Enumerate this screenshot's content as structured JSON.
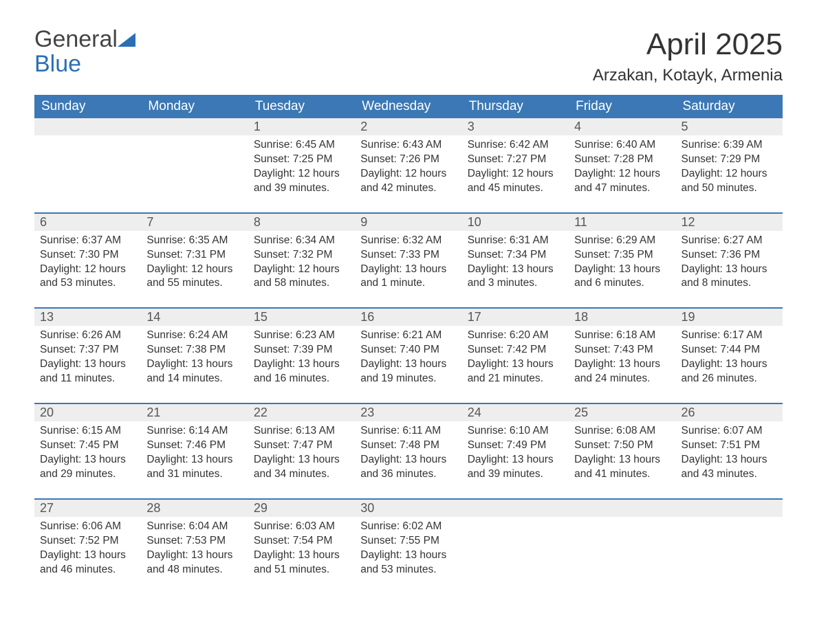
{
  "logo": {
    "word1": "General",
    "word2": "Blue"
  },
  "header": {
    "month_title": "April 2025",
    "location": "Arzakan, Kotayk, Armenia"
  },
  "colors": {
    "brand_blue": "#3b78b5",
    "header_row_bg": "#eeeeee",
    "text": "#333333",
    "page_bg": "#ffffff"
  },
  "calendar": {
    "columns": [
      "Sunday",
      "Monday",
      "Tuesday",
      "Wednesday",
      "Thursday",
      "Friday",
      "Saturday"
    ],
    "weeks": [
      [
        null,
        null,
        {
          "n": "1",
          "sr": "6:45 AM",
          "ss": "7:25 PM",
          "dl": "12 hours and 39 minutes."
        },
        {
          "n": "2",
          "sr": "6:43 AM",
          "ss": "7:26 PM",
          "dl": "12 hours and 42 minutes."
        },
        {
          "n": "3",
          "sr": "6:42 AM",
          "ss": "7:27 PM",
          "dl": "12 hours and 45 minutes."
        },
        {
          "n": "4",
          "sr": "6:40 AM",
          "ss": "7:28 PM",
          "dl": "12 hours and 47 minutes."
        },
        {
          "n": "5",
          "sr": "6:39 AM",
          "ss": "7:29 PM",
          "dl": "12 hours and 50 minutes."
        }
      ],
      [
        {
          "n": "6",
          "sr": "6:37 AM",
          "ss": "7:30 PM",
          "dl": "12 hours and 53 minutes."
        },
        {
          "n": "7",
          "sr": "6:35 AM",
          "ss": "7:31 PM",
          "dl": "12 hours and 55 minutes."
        },
        {
          "n": "8",
          "sr": "6:34 AM",
          "ss": "7:32 PM",
          "dl": "12 hours and 58 minutes."
        },
        {
          "n": "9",
          "sr": "6:32 AM",
          "ss": "7:33 PM",
          "dl": "13 hours and 1 minute."
        },
        {
          "n": "10",
          "sr": "6:31 AM",
          "ss": "7:34 PM",
          "dl": "13 hours and 3 minutes."
        },
        {
          "n": "11",
          "sr": "6:29 AM",
          "ss": "7:35 PM",
          "dl": "13 hours and 6 minutes."
        },
        {
          "n": "12",
          "sr": "6:27 AM",
          "ss": "7:36 PM",
          "dl": "13 hours and 8 minutes."
        }
      ],
      [
        {
          "n": "13",
          "sr": "6:26 AM",
          "ss": "7:37 PM",
          "dl": "13 hours and 11 minutes."
        },
        {
          "n": "14",
          "sr": "6:24 AM",
          "ss": "7:38 PM",
          "dl": "13 hours and 14 minutes."
        },
        {
          "n": "15",
          "sr": "6:23 AM",
          "ss": "7:39 PM",
          "dl": "13 hours and 16 minutes."
        },
        {
          "n": "16",
          "sr": "6:21 AM",
          "ss": "7:40 PM",
          "dl": "13 hours and 19 minutes."
        },
        {
          "n": "17",
          "sr": "6:20 AM",
          "ss": "7:42 PM",
          "dl": "13 hours and 21 minutes."
        },
        {
          "n": "18",
          "sr": "6:18 AM",
          "ss": "7:43 PM",
          "dl": "13 hours and 24 minutes."
        },
        {
          "n": "19",
          "sr": "6:17 AM",
          "ss": "7:44 PM",
          "dl": "13 hours and 26 minutes."
        }
      ],
      [
        {
          "n": "20",
          "sr": "6:15 AM",
          "ss": "7:45 PM",
          "dl": "13 hours and 29 minutes."
        },
        {
          "n": "21",
          "sr": "6:14 AM",
          "ss": "7:46 PM",
          "dl": "13 hours and 31 minutes."
        },
        {
          "n": "22",
          "sr": "6:13 AM",
          "ss": "7:47 PM",
          "dl": "13 hours and 34 minutes."
        },
        {
          "n": "23",
          "sr": "6:11 AM",
          "ss": "7:48 PM",
          "dl": "13 hours and 36 minutes."
        },
        {
          "n": "24",
          "sr": "6:10 AM",
          "ss": "7:49 PM",
          "dl": "13 hours and 39 minutes."
        },
        {
          "n": "25",
          "sr": "6:08 AM",
          "ss": "7:50 PM",
          "dl": "13 hours and 41 minutes."
        },
        {
          "n": "26",
          "sr": "6:07 AM",
          "ss": "7:51 PM",
          "dl": "13 hours and 43 minutes."
        }
      ],
      [
        {
          "n": "27",
          "sr": "6:06 AM",
          "ss": "7:52 PM",
          "dl": "13 hours and 46 minutes."
        },
        {
          "n": "28",
          "sr": "6:04 AM",
          "ss": "7:53 PM",
          "dl": "13 hours and 48 minutes."
        },
        {
          "n": "29",
          "sr": "6:03 AM",
          "ss": "7:54 PM",
          "dl": "13 hours and 51 minutes."
        },
        {
          "n": "30",
          "sr": "6:02 AM",
          "ss": "7:55 PM",
          "dl": "13 hours and 53 minutes."
        },
        null,
        null,
        null
      ]
    ],
    "labels": {
      "sunrise": "Sunrise: ",
      "sunset": "Sunset: ",
      "daylight": "Daylight: "
    }
  }
}
